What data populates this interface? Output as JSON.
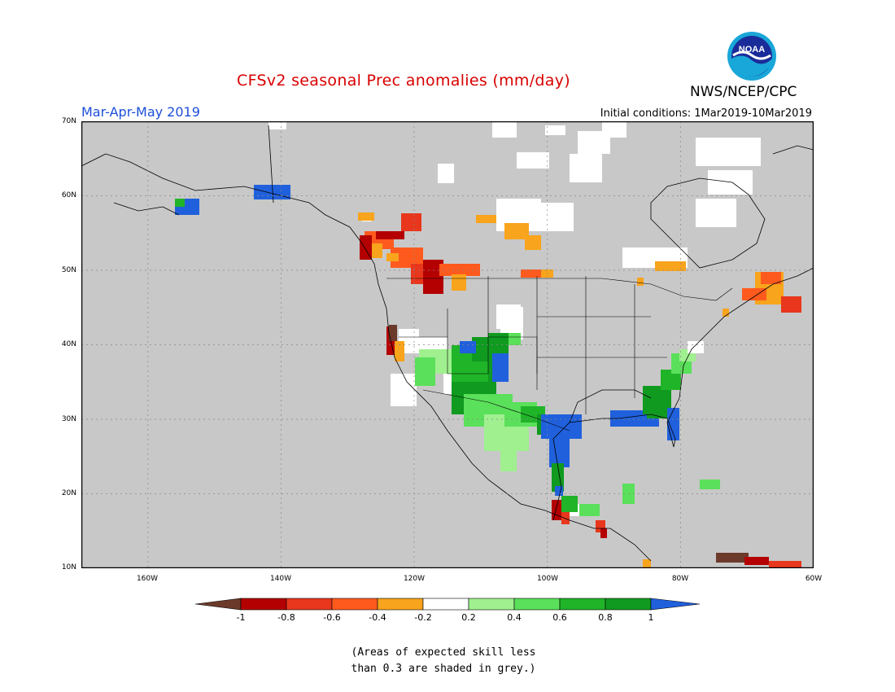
{
  "title": "CFSv2 seasonal Prec anomalies (mm/day)",
  "season": "Mar-Apr-May 2019",
  "initial_conditions": "Initial conditions: 1Mar2019-10Mar2019",
  "org": "NWS/NCEP/CPC",
  "logo": {
    "text": "NOAA",
    "icon": "noaa-logo-icon"
  },
  "map": {
    "background_color": "#c8c8c8",
    "lat_labels": [
      "70N",
      "60N",
      "50N",
      "40N",
      "30N",
      "20N",
      "10N"
    ],
    "lon_labels": [
      "160W",
      "140W",
      "120W",
      "100W",
      "80W",
      "60W"
    ]
  },
  "colorbar": {
    "labels": [
      "-1",
      "-0.8",
      "-0.6",
      "-0.4",
      "-0.2",
      "0.2",
      "0.4",
      "0.6",
      "0.8",
      "1"
    ],
    "colors": [
      "#6b3a2a",
      "#b40000",
      "#e8371c",
      "#ff5a1e",
      "#f8a41c",
      "#ffffff",
      "#a0f090",
      "#5ae05a",
      "#20b428",
      "#109a20",
      "#2060dc"
    ]
  },
  "note_lines": [
    "(Areas of expected skill less",
    "than 0.3 are shaded in grey.)"
  ]
}
